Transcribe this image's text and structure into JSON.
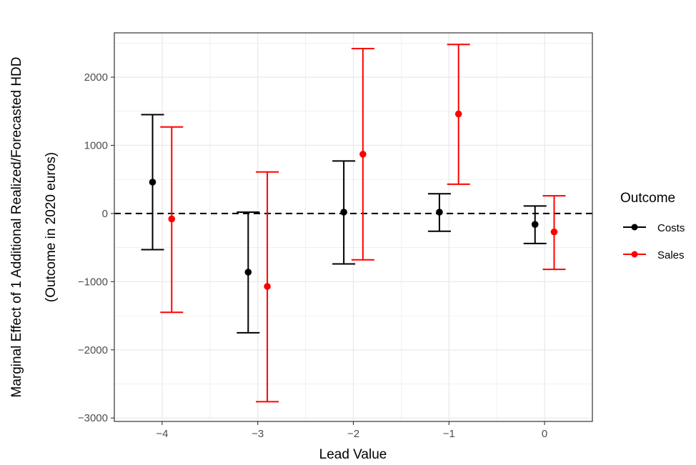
{
  "chart_data": {
    "type": "errorbar",
    "title": "",
    "xlabel": "Lead Value",
    "ylabel_line1": "Marginal Effect of 1 Additional Realized/Forecasted HDD",
    "ylabel_line2": "(Outcome in 2020 euros)",
    "xlim": [
      -4.5,
      0.5
    ],
    "ylim": [
      -3050,
      2650
    ],
    "x_ticks": [
      -4,
      -3,
      -2,
      -1,
      0
    ],
    "x_tick_labels": [
      "−4",
      "−3",
      "−2",
      "−1",
      "0"
    ],
    "y_ticks": [
      -3000,
      -2000,
      -1000,
      0,
      1000,
      2000
    ],
    "y_tick_labels": [
      "−3000",
      "−2000",
      "−1000",
      "0",
      "1000",
      "2000"
    ],
    "reference_line": 0,
    "grid": true,
    "legend": {
      "title": "Outcome",
      "placement": "right"
    },
    "series": [
      {
        "name": "Costs",
        "color": "#000000",
        "points": [
          {
            "lead": -4,
            "x": -4.1,
            "estimate": 460,
            "lower": -530,
            "upper": 1450
          },
          {
            "lead": -3,
            "x": -3.1,
            "estimate": -860,
            "lower": -1750,
            "upper": 20
          },
          {
            "lead": -2,
            "x": -2.1,
            "estimate": 20,
            "lower": -740,
            "upper": 770
          },
          {
            "lead": -1,
            "x": -1.1,
            "estimate": 20,
            "lower": -260,
            "upper": 290
          },
          {
            "lead": 0,
            "x": -0.1,
            "estimate": -160,
            "lower": -440,
            "upper": 110
          }
        ]
      },
      {
        "name": "Sales",
        "color": "#ff0000",
        "points": [
          {
            "lead": -4,
            "x": -3.9,
            "estimate": -80,
            "lower": -1450,
            "upper": 1270
          },
          {
            "lead": -3,
            "x": -2.9,
            "estimate": -1070,
            "lower": -2760,
            "upper": 610
          },
          {
            "lead": -2,
            "x": -1.9,
            "estimate": 870,
            "lower": -680,
            "upper": 2420
          },
          {
            "lead": -1,
            "x": -0.9,
            "estimate": 1460,
            "lower": 430,
            "upper": 2480
          },
          {
            "lead": 0,
            "x": 0.1,
            "estimate": -270,
            "lower": -820,
            "upper": 260
          }
        ]
      }
    ]
  }
}
